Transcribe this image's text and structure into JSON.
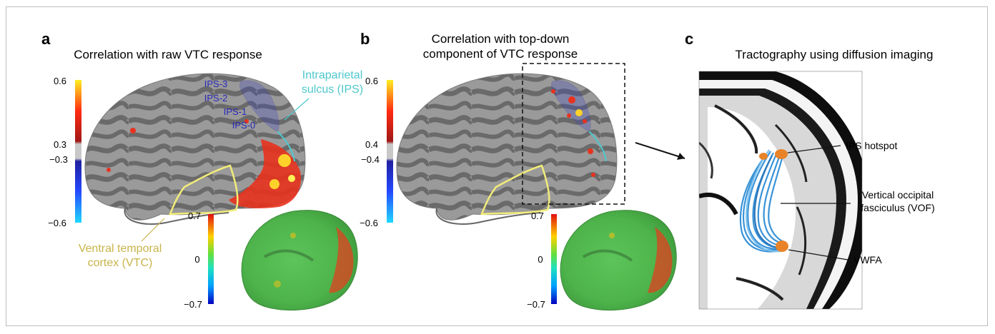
{
  "panel_a": {
    "letter": "a",
    "title": "Correlation with raw VTC response",
    "scale": {
      "max": "0.6",
      "upper": "0.3",
      "lower": "−0.3",
      "min": "−0.6"
    },
    "inset_scale": {
      "max": "0.7",
      "mid": "0",
      "min": "−0.7"
    },
    "ips_labels": [
      "IPS-3",
      "IPS-2",
      "IPS-1",
      "IPS-0"
    ],
    "ips_annotation": [
      "Intraparietal",
      "sulcus (IPS)"
    ],
    "vtc_annotation": [
      "Ventral temporal",
      "cortex (VTC)"
    ]
  },
  "panel_b": {
    "letter": "b",
    "title": [
      "Correlation with top-down",
      "component of VTC response"
    ],
    "scale": {
      "max": "0.6",
      "upper": "0.4",
      "lower": "−0.4",
      "min": "−0.6"
    },
    "inset_scale": {
      "max": "0.7",
      "mid": "0",
      "min": "−0.7"
    }
  },
  "panel_c": {
    "letter": "c",
    "title": "Tractography using diffusion imaging",
    "labels": {
      "ips": "IPS hotspot",
      "vof": [
        "Vertical occipital",
        "fasciculus (VOF)"
      ],
      "vwfa": "VWFA"
    }
  },
  "colors": {
    "ips_outline": "#2a2ab8",
    "ips_annotation": "#4ec8cc",
    "vtc_outline": "#f2ec7a",
    "vtc_annotation": "#c8b44a",
    "hot": "#e8321e",
    "tract": "#2f8ed6",
    "roi": "#e8832a"
  }
}
